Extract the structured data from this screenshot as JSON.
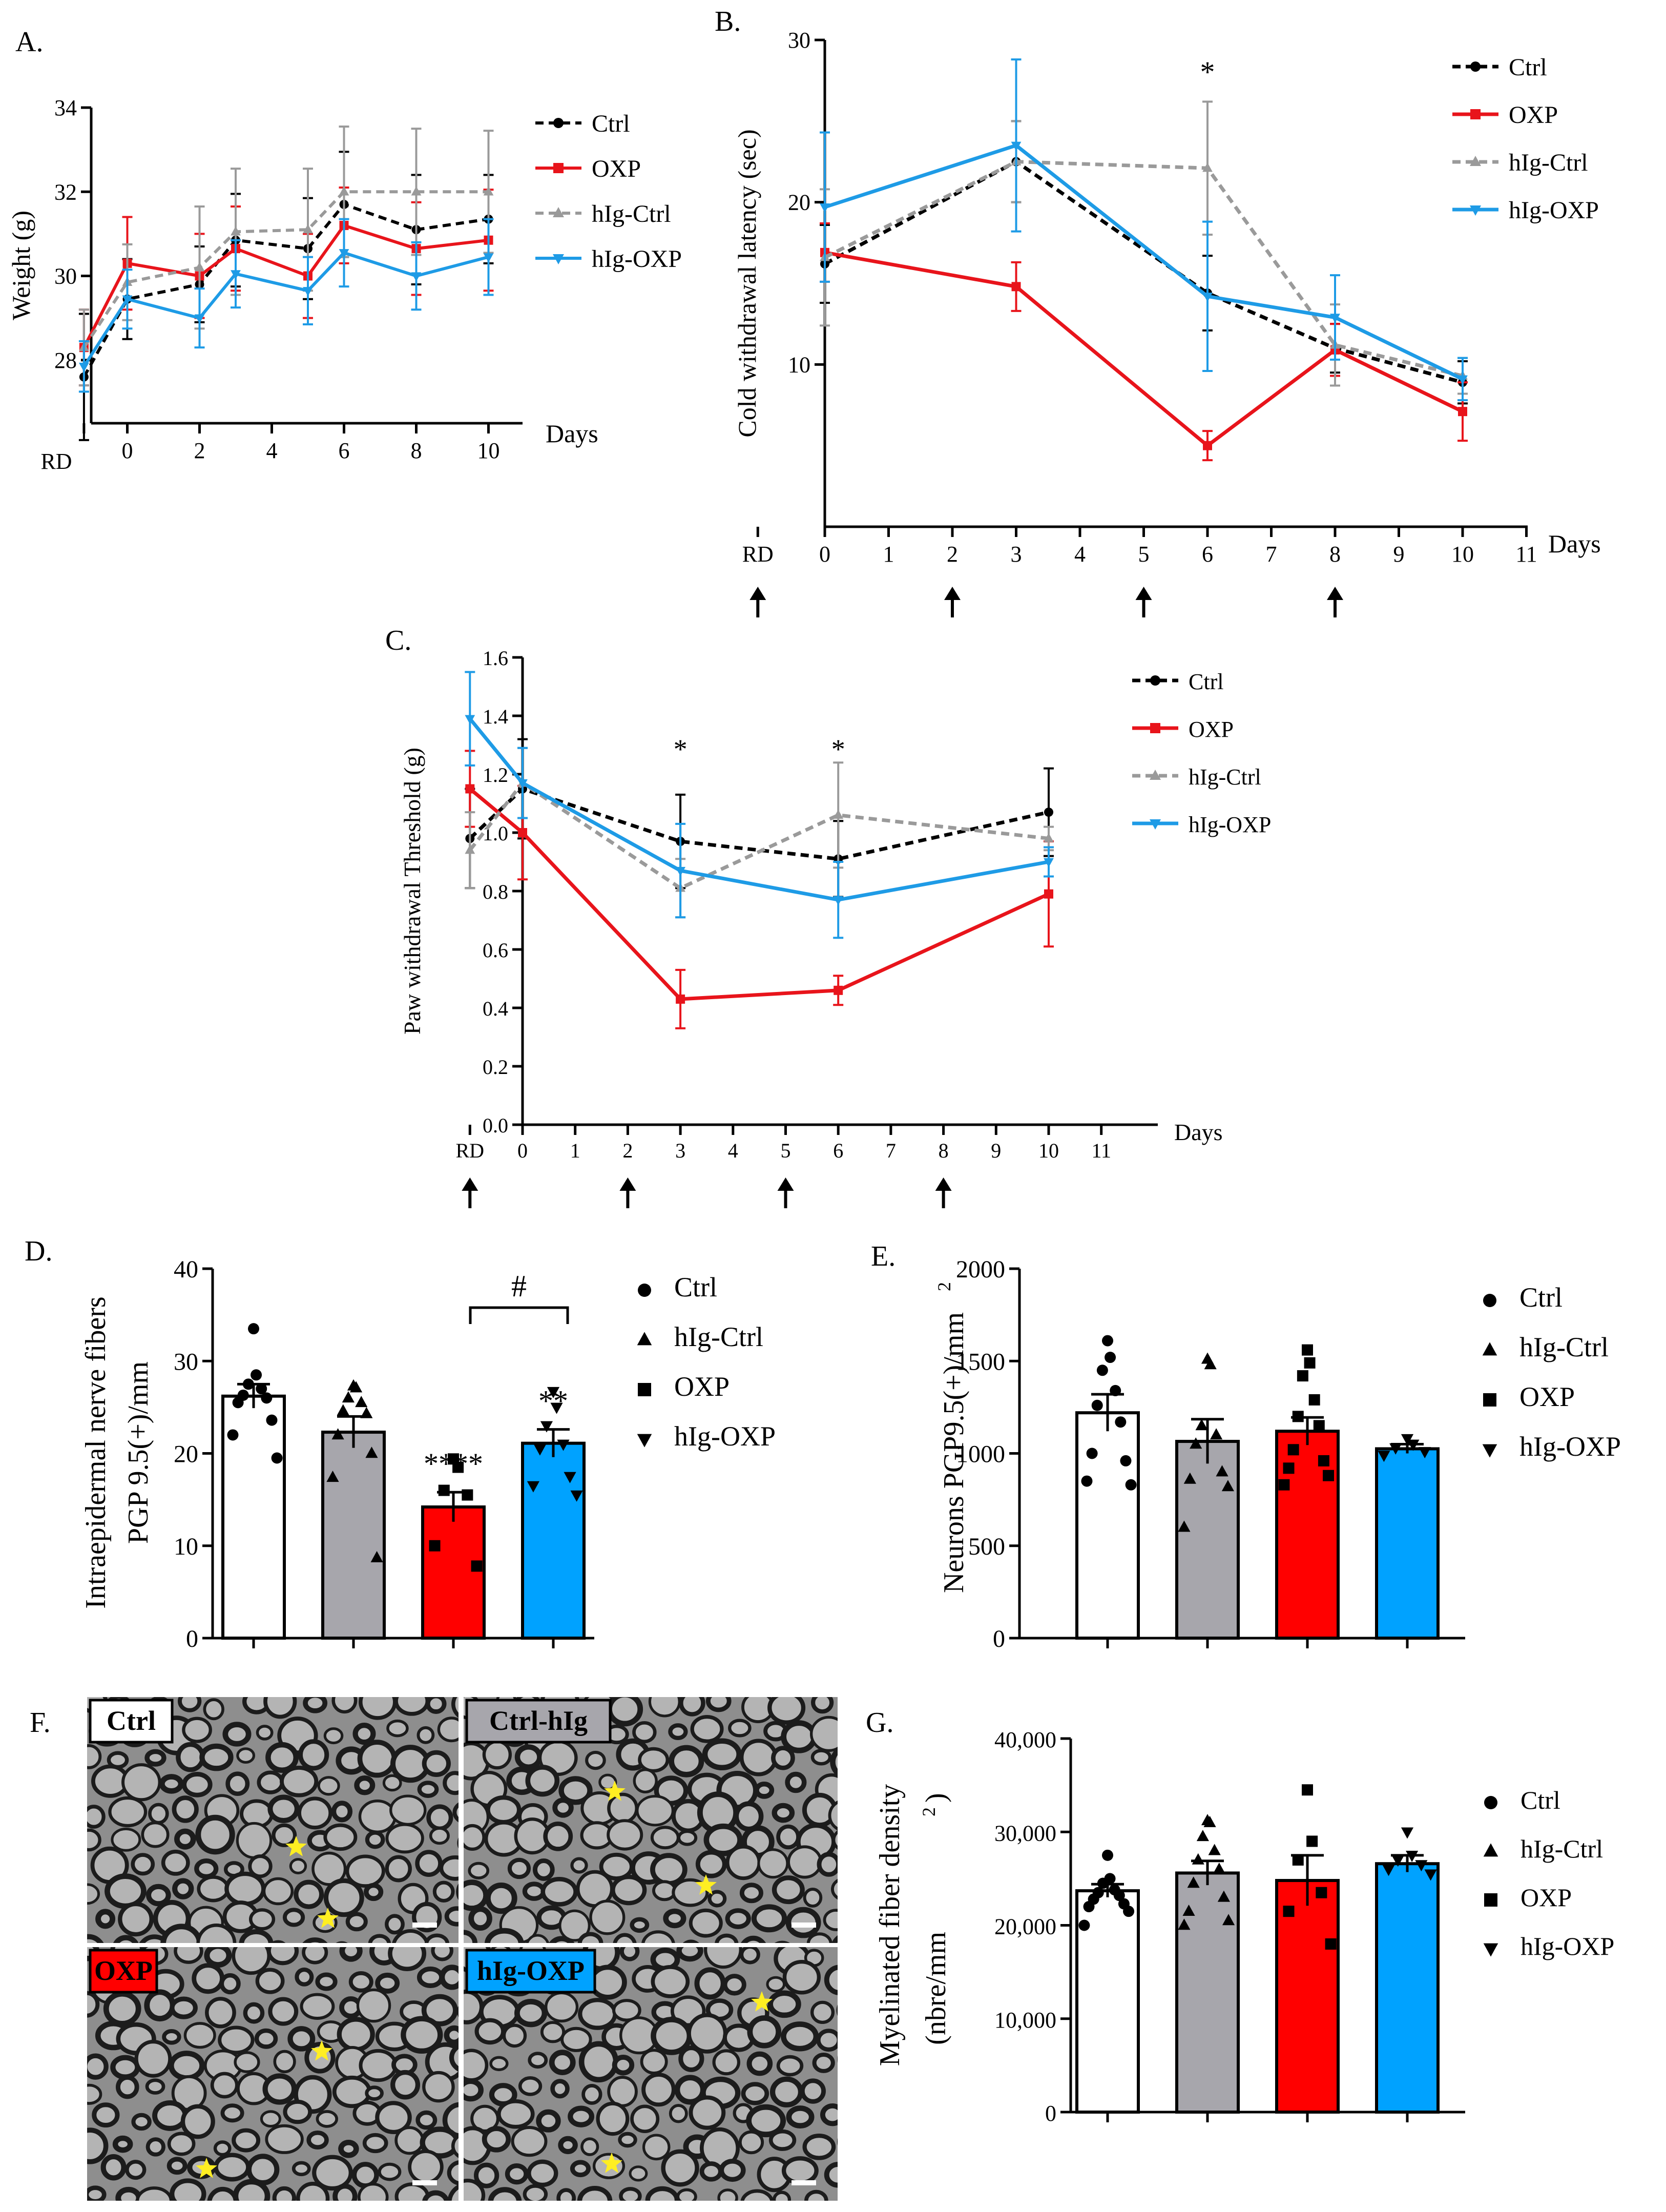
{
  "colors": {
    "ctrl": "#000000",
    "oxp": "#e8141b",
    "hig_ctrl": "#9a9a9a",
    "hig_oxp": "#1e9be6",
    "bar_ctrl": "#ffffff",
    "bar_hig_ctrl": "#a7a6ac",
    "bar_oxp": "#ff0000",
    "bar_hig_oxp": "#00a2ff",
    "star": "#ffee22"
  },
  "panels": {
    "A": {
      "letter": "A."
    },
    "B": {
      "letter": "B."
    },
    "C": {
      "letter": "C."
    },
    "D": {
      "letter": "D."
    },
    "E": {
      "letter": "E."
    },
    "F": {
      "letter": "F."
    },
    "G": {
      "letter": "G."
    }
  },
  "micrographs": [
    {
      "label": "Ctrl",
      "color": "#ffffff",
      "text_color": "#000000"
    },
    {
      "label": "Ctrl-hIg",
      "color": "#a7a6ac",
      "text_color": "#000000"
    },
    {
      "label": "OXP",
      "color": "#ff0000",
      "text_color": "#000000"
    },
    {
      "label": "hIg-OXP",
      "color": "#00a2ff",
      "text_color": "#000000"
    }
  ],
  "chart_data": [
    {
      "panel": "A",
      "type": "line",
      "xlabel": "Days",
      "ylabel": "Weight (g)",
      "x_ticks": [
        "RD",
        "0",
        "2",
        "4",
        "6",
        "8",
        "10"
      ],
      "y_ticks": [
        "28",
        "30",
        "32",
        "34"
      ],
      "ylim": [
        26.5,
        34
      ],
      "series": [
        {
          "name": "Ctrl",
          "style": "dashed",
          "marker": "circle",
          "x": [
            -1,
            0,
            2,
            3,
            5,
            6,
            8,
            10
          ],
          "y": [
            27.6,
            29.45,
            29.8,
            30.85,
            30.65,
            31.7,
            31.1,
            31.35
          ],
          "err": [
            1.5,
            0.95,
            0.9,
            1.1,
            1.2,
            1.25,
            1.3,
            1.05
          ]
        },
        {
          "name": "OXP",
          "style": "solid",
          "marker": "square",
          "x": [
            -1,
            0,
            2,
            3,
            5,
            6,
            8,
            10
          ],
          "y": [
            28.3,
            30.3,
            30.0,
            30.65,
            30.0,
            31.2,
            30.65,
            30.85
          ],
          "err": [
            0.9,
            1.1,
            1.0,
            1.0,
            1.0,
            0.9,
            1.1,
            1.2
          ]
        },
        {
          "name": "hIg-Ctrl",
          "style": "dashed",
          "marker": "triangle-up",
          "x": [
            -1,
            0,
            2,
            3,
            5,
            6,
            8,
            10
          ],
          "y": [
            28.3,
            29.85,
            30.2,
            31.05,
            31.1,
            32.0,
            32.0,
            32.0
          ],
          "err": [
            0.9,
            0.9,
            1.45,
            1.5,
            1.45,
            1.55,
            1.5,
            1.45
          ]
        },
        {
          "name": "hIg-OXP",
          "style": "solid",
          "marker": "triangle-down",
          "x": [
            -1,
            0,
            2,
            3,
            5,
            6,
            8,
            10
          ],
          "y": [
            27.85,
            29.45,
            29.0,
            30.05,
            29.65,
            30.55,
            30.0,
            30.45
          ],
          "err": [
            0.6,
            0.7,
            0.7,
            0.8,
            0.8,
            0.8,
            0.8,
            0.9
          ]
        }
      ]
    },
    {
      "panel": "B",
      "type": "line",
      "xlabel": "Days",
      "ylabel": "Cold withdrawal latency (sec)",
      "x_ticks": [
        "RD",
        "0",
        "1",
        "2",
        "3",
        "4",
        "5",
        "6",
        "7",
        "8",
        "9",
        "10",
        "11"
      ],
      "y_ticks": [
        "10",
        "20",
        "30"
      ],
      "ylim": [
        0,
        30
      ],
      "arrow_days": [
        "RD",
        "2",
        "5",
        "8"
      ],
      "annotations": [
        {
          "x": 6,
          "text": "*"
        }
      ],
      "series": [
        {
          "name": "Ctrl",
          "style": "dashed",
          "marker": "circle",
          "x": [
            0,
            3,
            6,
            8,
            10
          ],
          "y": [
            16.2,
            22.5,
            14.4,
            11.0,
            8.9
          ],
          "err": [
            2.4,
            2.5,
            2.3,
            1.5,
            1.3
          ]
        },
        {
          "name": "OXP",
          "style": "solid",
          "marker": "square",
          "x": [
            0,
            3,
            6,
            8,
            10
          ],
          "y": [
            16.9,
            14.8,
            5.0,
            10.9,
            7.1
          ],
          "err": [
            1.8,
            1.5,
            0.9,
            1.6,
            1.8
          ]
        },
        {
          "name": "hIg-Ctrl",
          "style": "dashed",
          "marker": "triangle-up",
          "x": [
            0,
            3,
            6,
            8,
            10
          ],
          "y": [
            16.6,
            22.5,
            22.1,
            11.2,
            9.3
          ],
          "err": [
            4.2,
            2.5,
            4.1,
            2.5,
            1.1
          ]
        },
        {
          "name": "hIg-OXP",
          "style": "solid",
          "marker": "triangle-down",
          "x": [
            0,
            3,
            6,
            8,
            10
          ],
          "y": [
            19.7,
            23.5,
            14.2,
            12.9,
            9.1
          ],
          "err": [
            4.6,
            5.3,
            4.6,
            2.6,
            1.3
          ]
        }
      ]
    },
    {
      "panel": "C",
      "type": "line",
      "xlabel": "Days",
      "ylabel": "Paw withdrawal Threshold (g)",
      "x_ticks": [
        "RD",
        "0",
        "1",
        "2",
        "3",
        "4",
        "5",
        "6",
        "7",
        "8",
        "9",
        "10",
        "11"
      ],
      "y_ticks": [
        "0.0",
        "0.2",
        "0.4",
        "0.6",
        "0.8",
        "1.0",
        "1.2",
        "1.4",
        "1.6"
      ],
      "ylim": [
        0,
        1.6
      ],
      "arrow_days": [
        "RD",
        "2",
        "5",
        "8"
      ],
      "annotations": [
        {
          "x": 3,
          "text": "*"
        },
        {
          "x": 6,
          "text": "*"
        }
      ],
      "series": [
        {
          "name": "Ctrl",
          "style": "dashed",
          "marker": "circle",
          "x": [
            -1,
            0,
            3,
            6,
            10
          ],
          "y": [
            0.98,
            1.15,
            0.97,
            0.91,
            1.07
          ],
          "err": [
            0.17,
            0.17,
            0.16,
            0.13,
            0.15
          ]
        },
        {
          "name": "OXP",
          "style": "solid",
          "marker": "square",
          "x": [
            -1,
            0,
            3,
            6,
            10
          ],
          "y": [
            1.15,
            1.0,
            0.43,
            0.46,
            0.79
          ],
          "err": [
            0.13,
            0.16,
            0.1,
            0.05,
            0.18
          ]
        },
        {
          "name": "hIg-Ctrl",
          "style": "dashed",
          "marker": "triangle-up",
          "x": [
            -1,
            0,
            3,
            6,
            10
          ],
          "y": [
            0.94,
            1.17,
            0.81,
            1.06,
            0.98
          ],
          "err": [
            0.13,
            0.12,
            0.1,
            0.18,
            0.04
          ]
        },
        {
          "name": "hIg-OXP",
          "style": "solid",
          "marker": "triangle-down",
          "x": [
            -1,
            0,
            3,
            6,
            10
          ],
          "y": [
            1.39,
            1.17,
            0.87,
            0.77,
            0.9
          ],
          "err": [
            0.16,
            0.12,
            0.16,
            0.13,
            0.05
          ]
        }
      ]
    },
    {
      "panel": "D",
      "type": "bar",
      "ylabel": "Intraepidermal nerve fibers PGP 9.5(+)/mm",
      "ylabel_lines": [
        "Intraepidermal nerve fibers",
        "PGP 9.5(+)/mm"
      ],
      "y_ticks": [
        "0",
        "10",
        "20",
        "30",
        "40"
      ],
      "ylim": [
        0,
        40
      ],
      "legend": [
        "Ctrl",
        "hIg-Ctrl",
        "OXP",
        "hIg-OXP"
      ],
      "bracket": "#",
      "series": [
        {
          "name": "Ctrl",
          "value": 26.2,
          "sem": 1.3,
          "marker": "circle",
          "points": [
            33.5,
            28.5,
            27.5,
            27.0,
            26.3,
            26.0,
            25.5,
            23.6,
            22.0,
            19.5
          ],
          "label": ""
        },
        {
          "name": "hIg-Ctrl",
          "value": 22.3,
          "sem": 1.7,
          "marker": "square",
          "points": [
            27.3,
            27.1,
            26.0,
            25.5,
            24.6,
            24.3,
            22.0,
            20.0,
            17.4,
            8.7
          ],
          "label": ""
        },
        {
          "name": "OXP",
          "value": 14.2,
          "sem": 1.6,
          "marker": "triangle-up",
          "points": [
            19.4,
            18.5,
            16.0,
            15.5,
            10.0,
            7.8
          ],
          "label": "****"
        },
        {
          "name": "hIg-OXP",
          "value": 21.1,
          "sem": 1.5,
          "marker": "triangle-down",
          "points": [
            26.7,
            25.0,
            23.0,
            21.0,
            20.5,
            17.5,
            16.5,
            15.5
          ],
          "label": "**"
        }
      ]
    },
    {
      "panel": "E",
      "type": "bar",
      "ylabel": "Neurons PGP9.5(+)/mm",
      "ylabel_sup": "2",
      "y_ticks": [
        "0",
        "500",
        "1000",
        "1500",
        "2000"
      ],
      "ylim": [
        0,
        2000
      ],
      "legend": [
        "Ctrl",
        "hIg-Ctrl",
        "OXP",
        "hIg-OXP"
      ],
      "series": [
        {
          "name": "Ctrl",
          "value": 1220,
          "sem": 100,
          "marker": "circle",
          "points": [
            1610,
            1520,
            1450,
            1340,
            1260,
            1170,
            1000,
            960,
            850,
            830
          ]
        },
        {
          "name": "hIg-Ctrl",
          "value": 1065,
          "sem": 120,
          "marker": "square",
          "points": [
            1510,
            1480,
            1150,
            1100,
            1050,
            900,
            860,
            820,
            600
          ]
        },
        {
          "name": "OXP",
          "value": 1120,
          "sem": 75,
          "marker": "triangle-up",
          "points": [
            1560,
            1490,
            1420,
            1290,
            1200,
            1150,
            1020,
            960,
            920,
            880,
            830
          ]
        },
        {
          "name": "hIg-OXP",
          "value": 1025,
          "sem": 25,
          "marker": "triangle-down",
          "points": [
            1080,
            1050,
            1030,
            1010,
            990
          ]
        }
      ]
    },
    {
      "panel": "G",
      "type": "bar",
      "ylabel": "Myelinated fiber density",
      "ylabel2": "(nbre/mm",
      "ylabel2_sup": "2",
      "ylabel2_end": ")",
      "y_ticks": [
        "0",
        "10,000",
        "20,000",
        "30,000",
        "40,000"
      ],
      "ylim": [
        0,
        40000
      ],
      "legend": [
        "Ctrl",
        "hIg-Ctrl",
        "OXP",
        "hIg-OXP"
      ],
      "series": [
        {
          "name": "Ctrl",
          "value": 23700,
          "sem": 700,
          "marker": "circle",
          "points": [
            27500,
            25000,
            24500,
            23800,
            23500,
            23200,
            22800,
            22300,
            22000,
            21500,
            20000
          ]
        },
        {
          "name": "hIg-Ctrl",
          "value": 25600,
          "sem": 1300,
          "marker": "square",
          "points": [
            31200,
            31000,
            29500,
            28000,
            27000,
            26000,
            24500,
            23000,
            21500,
            20500,
            20000
          ]
        },
        {
          "name": "OXP",
          "value": 24800,
          "sem": 2700,
          "marker": "triangle-up",
          "points": [
            34500,
            29000,
            27000,
            23500,
            21500,
            18000
          ]
        },
        {
          "name": "hIg-OXP",
          "value": 26600,
          "sem": 900,
          "marker": "triangle-down",
          "points": [
            30000,
            27500,
            27000,
            26500,
            26000,
            25500
          ]
        }
      ]
    }
  ]
}
